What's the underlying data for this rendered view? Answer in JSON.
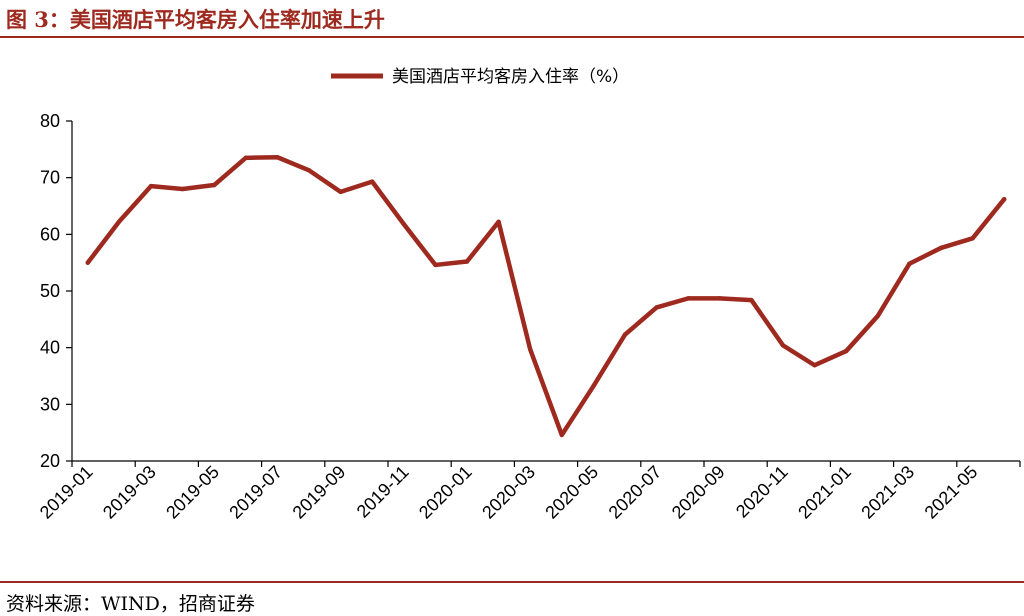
{
  "figure": {
    "title": "图 3：美国酒店平均客房入住率加速上升",
    "source": "资料来源：WIND，招商证券"
  },
  "colors": {
    "accent": "#9e2a1f",
    "line": "#9e2a1f"
  },
  "chart_data": {
    "type": "line",
    "title": "",
    "xlabel": "",
    "ylabel": "",
    "ylim": [
      20,
      80
    ],
    "yticks": [
      20,
      30,
      40,
      50,
      60,
      70,
      80
    ],
    "grid": false,
    "legend_position": "top-center",
    "x": [
      "2019-01",
      "2019-02",
      "2019-03",
      "2019-04",
      "2019-05",
      "2019-06",
      "2019-07",
      "2019-08",
      "2019-09",
      "2019-10",
      "2019-11",
      "2019-12",
      "2020-01",
      "2020-02",
      "2020-03",
      "2020-04",
      "2020-05",
      "2020-06",
      "2020-07",
      "2020-08",
      "2020-09",
      "2020-10",
      "2020-11",
      "2020-12",
      "2021-01",
      "2021-02",
      "2021-03",
      "2021-04",
      "2021-05",
      "2021-06"
    ],
    "xtick_labels": [
      "2019-01",
      "2019-03",
      "2019-05",
      "2019-07",
      "2019-09",
      "2019-11",
      "2020-01",
      "2020-03",
      "2020-05",
      "2020-07",
      "2020-09",
      "2020-11",
      "2021-01",
      "2021-03",
      "2021-05"
    ],
    "series": [
      {
        "name": "美国酒店平均客房入住率（%）",
        "values": [
          55.0,
          62.3,
          68.5,
          68.0,
          68.7,
          73.5,
          73.6,
          71.3,
          67.5,
          69.3,
          61.8,
          54.6,
          55.2,
          62.2,
          39.7,
          24.6,
          33.2,
          42.3,
          47.1,
          48.7,
          48.7,
          48.4,
          40.4,
          36.9,
          39.4,
          45.6,
          54.8,
          57.6,
          59.3,
          66.2
        ]
      }
    ]
  }
}
